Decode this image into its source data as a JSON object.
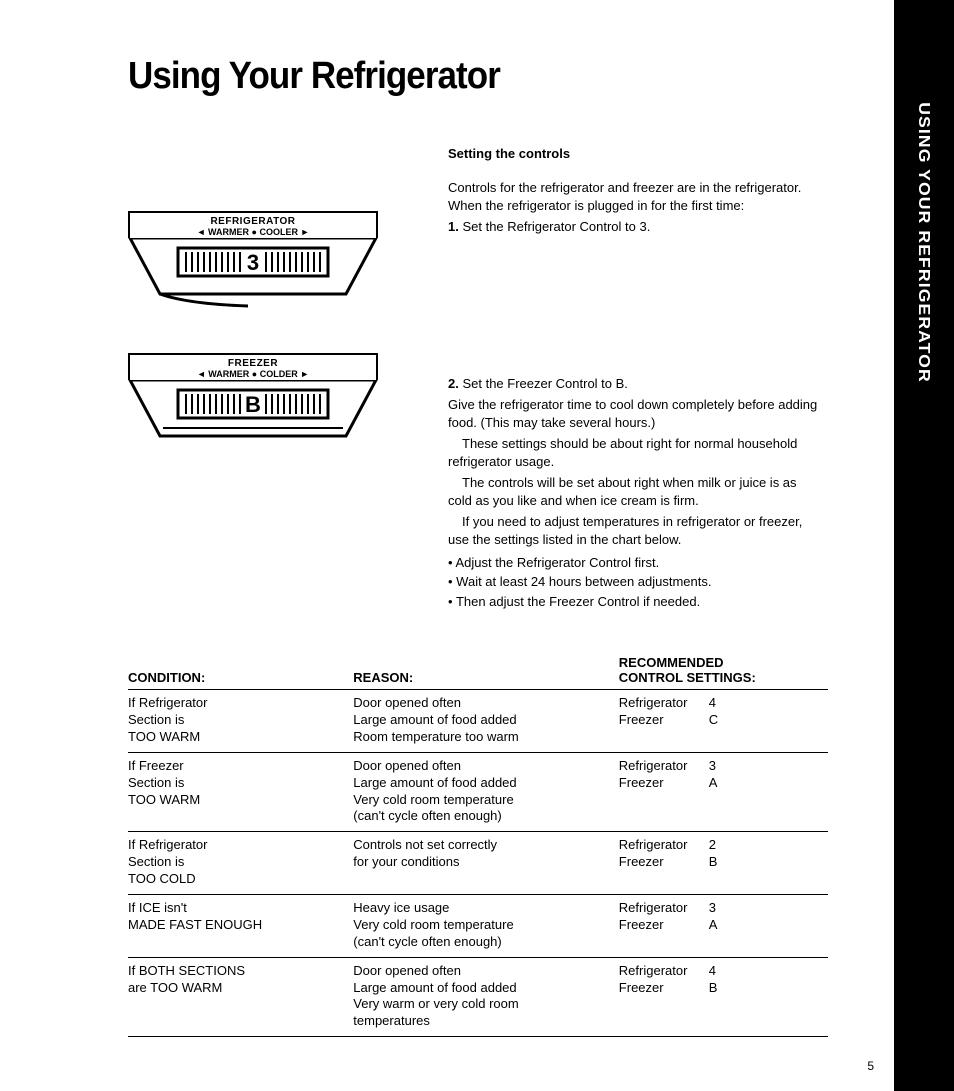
{
  "title": "Using Your Refrigerator",
  "side_tab": "USING YOUR REFRIGERATOR",
  "page_number": "5",
  "diagrams": {
    "fridge": {
      "title": "REFRIGERATOR",
      "sub": "◄ WARMER ● COOLER ►",
      "value": "3"
    },
    "freezer": {
      "title": "FREEZER",
      "sub": "◄ WARMER ● COLDER ►",
      "value": "B"
    }
  },
  "section": {
    "heading": "Setting the controls",
    "intro": "Controls for the refrigerator and freezer are in the refrigerator. When the refrigerator is plugged in for the first time:",
    "step1_num": "1.",
    "step1": " Set the Refrigerator Control to 3.",
    "step2_num": "2.",
    "step2": " Set the Freezer Control to B.",
    "p1": "Give the refrigerator time to cool down completely before adding food. (This may take several hours.)",
    "p2": "These settings should be about right for normal household refrigerator usage.",
    "p3": "The controls will be set about right when milk or juice is as cold as you like and when ice cream is firm.",
    "p4": "If you need to adjust temperatures in refrigerator or freezer, use the settings listed in the chart below.",
    "b1": "Adjust the Refrigerator Control first.",
    "b2": "Wait at least 24 hours between adjustments.",
    "b3": "Then adjust the Freezer Control if needed."
  },
  "table": {
    "headers": {
      "condition": "CONDITION:",
      "reason": "REASON:",
      "recommended_l1": "RECOMMENDED",
      "recommended_l2": "CONTROL SETTINGS:"
    },
    "rows": [
      {
        "condition": "If Refrigerator\nSection is\nTOO WARM",
        "reason": "Door opened often\nLarge amount of food added\nRoom temperature too warm",
        "settings": [
          [
            "Refrigerator",
            "4"
          ],
          [
            "Freezer",
            "C"
          ]
        ]
      },
      {
        "condition": "If Freezer\nSection is\nTOO WARM",
        "reason": "Door opened often\nLarge amount of food added\nVery cold room temperature\n(can't cycle often enough)",
        "settings": [
          [
            "Refrigerator",
            "3"
          ],
          [
            "Freezer",
            "A"
          ]
        ]
      },
      {
        "condition": "If Refrigerator\nSection is\nTOO COLD",
        "reason": "Controls not set correctly\nfor your conditions",
        "settings": [
          [
            "Refrigerator",
            "2"
          ],
          [
            "Freezer",
            "B"
          ]
        ]
      },
      {
        "condition": "If ICE isn't\nMADE FAST ENOUGH",
        "reason": "Heavy ice usage\nVery cold room temperature\n(can't cycle often enough)",
        "settings": [
          [
            "Refrigerator",
            "3"
          ],
          [
            "Freezer",
            "A"
          ]
        ]
      },
      {
        "condition": "If BOTH SECTIONS\nare TOO WARM",
        "reason": "Door opened often\nLarge amount of food added\nVery warm or very cold room\ntemperatures",
        "settings": [
          [
            "Refrigerator",
            "4"
          ],
          [
            "Freezer",
            "B"
          ]
        ]
      }
    ]
  }
}
